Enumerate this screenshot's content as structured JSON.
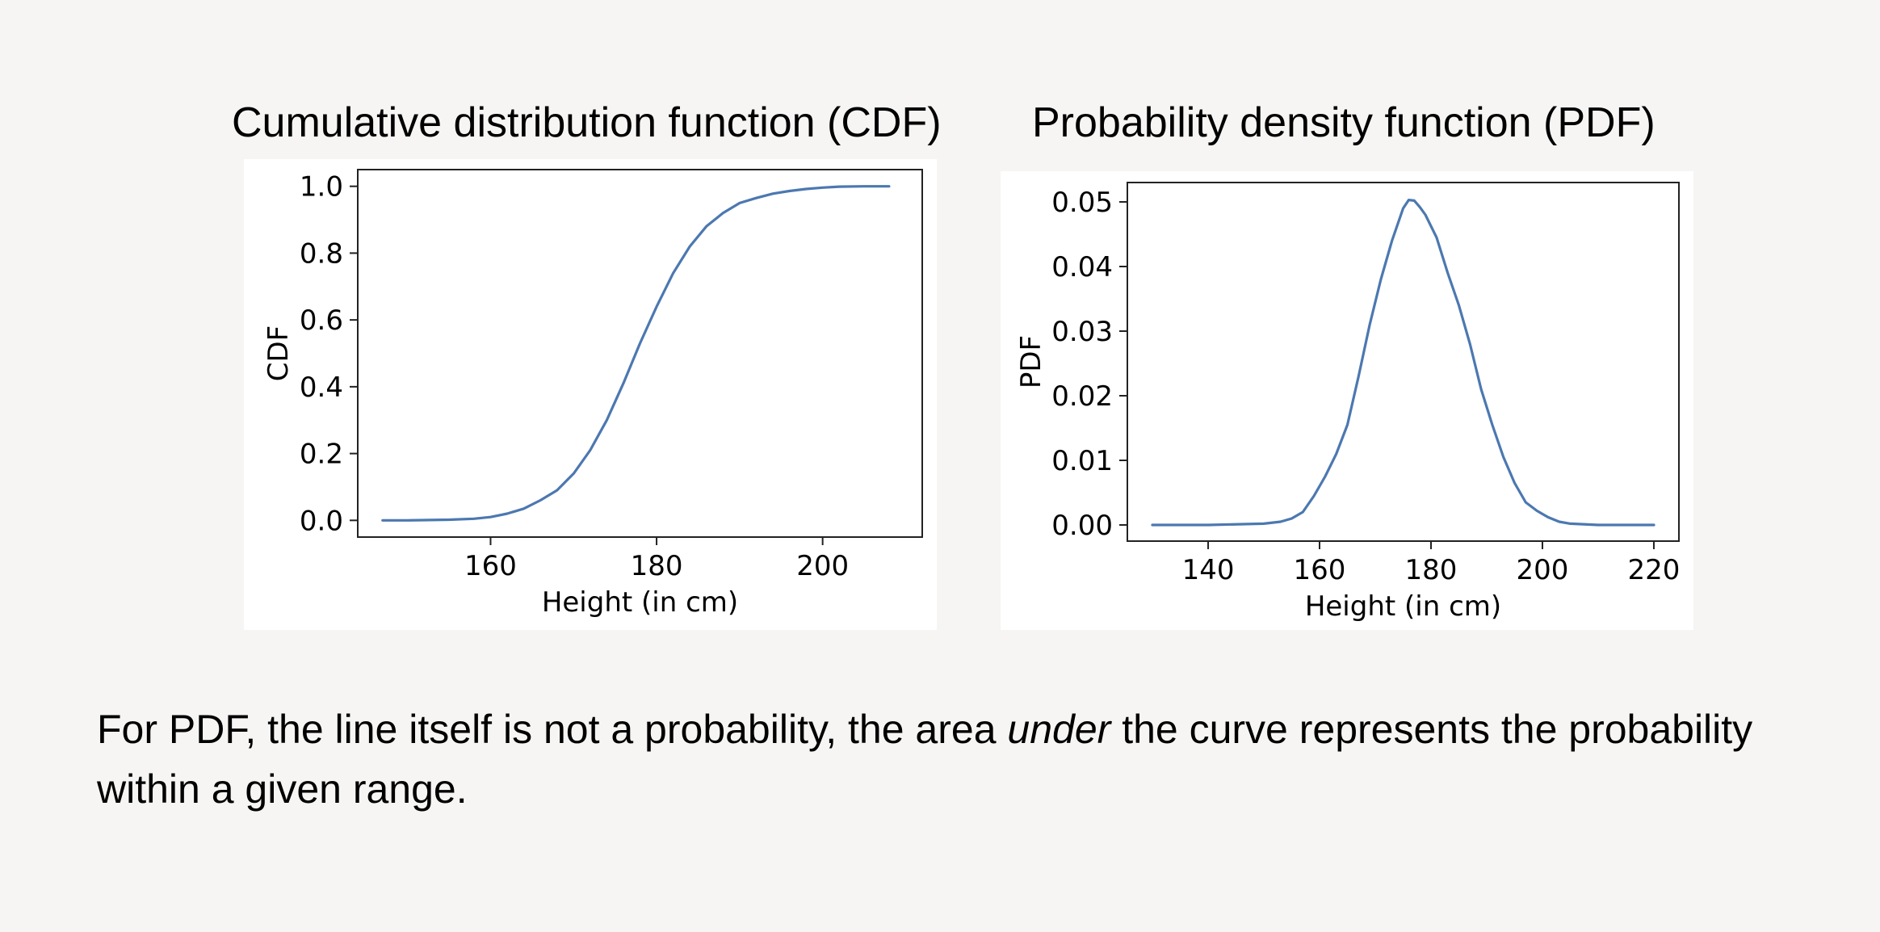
{
  "chart_data": [
    {
      "type": "line",
      "title": "Cumulative distribution function (CDF)",
      "xlabel": "Height (in cm)",
      "ylabel": "CDF",
      "xlim": [
        144,
        212
      ],
      "ylim": [
        -0.05,
        1.05
      ],
      "xticks": [
        160,
        180,
        200
      ],
      "yticks": [
        0.0,
        0.2,
        0.4,
        0.6,
        0.8,
        1.0
      ],
      "ytick_decimals": 1,
      "grid": false,
      "color": "#4c78b0",
      "series": [
        {
          "x": [
            147,
            150,
            155,
            158,
            160,
            162,
            164,
            166,
            168,
            170,
            172,
            174,
            176,
            178,
            180,
            182,
            184,
            186,
            188,
            190,
            192,
            194,
            196,
            198,
            200,
            202,
            205,
            208
          ],
          "values": [
            0.0,
            0.0,
            0.002,
            0.005,
            0.01,
            0.02,
            0.035,
            0.06,
            0.09,
            0.14,
            0.21,
            0.3,
            0.41,
            0.53,
            0.64,
            0.74,
            0.82,
            0.88,
            0.92,
            0.95,
            0.965,
            0.978,
            0.986,
            0.992,
            0.996,
            0.999,
            1.0,
            1.0
          ]
        }
      ]
    },
    {
      "type": "line",
      "title": "Probability density function (PDF)",
      "xlabel": "Height (in cm)",
      "ylabel": "PDF",
      "xlim": [
        125.5,
        224.5
      ],
      "ylim": [
        -0.0025,
        0.053
      ],
      "xticks": [
        140,
        160,
        180,
        200,
        220
      ],
      "yticks": [
        0.0,
        0.01,
        0.02,
        0.03,
        0.04,
        0.05
      ],
      "ytick_decimals": 2,
      "grid": false,
      "color": "#4c78b0",
      "series": [
        {
          "x": [
            130,
            140,
            150,
            153,
            155,
            157,
            159,
            161,
            163,
            165,
            167,
            169,
            171,
            173,
            175,
            176,
            177,
            178,
            179,
            181,
            183,
            185,
            187,
            189,
            191,
            193,
            195,
            197,
            199,
            201,
            203,
            205,
            210,
            220
          ],
          "values": [
            0.0,
            0.0,
            0.0002,
            0.0005,
            0.001,
            0.002,
            0.0045,
            0.0075,
            0.011,
            0.0155,
            0.023,
            0.031,
            0.038,
            0.044,
            0.049,
            0.0503,
            0.0502,
            0.0492,
            0.048,
            0.0445,
            0.039,
            0.034,
            0.028,
            0.021,
            0.0155,
            0.0105,
            0.0065,
            0.0035,
            0.0022,
            0.0012,
            0.0005,
            0.0002,
            0.0,
            0.0
          ]
        }
      ]
    }
  ],
  "caption": {
    "before": "For PDF, the line itself is not a probability, the area ",
    "emphasis": "under",
    "after": " the curve represents the probability within a given range."
  }
}
